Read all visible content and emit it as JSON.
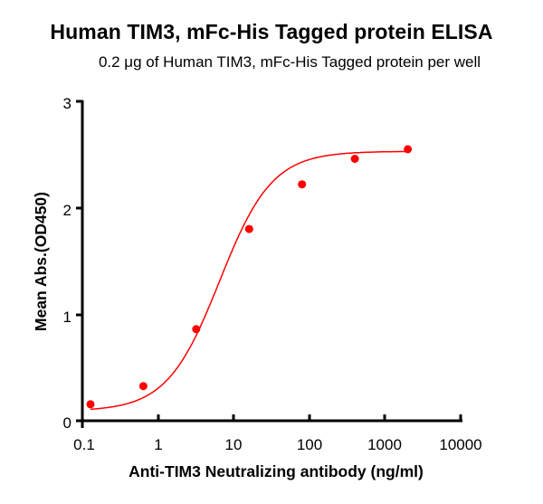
{
  "title": "Human TIM3, mFc-His Tagged protein ELISA",
  "subtitle": "0.2 μg of Human TIM3, mFc-His Tagged protein per well",
  "colors": {
    "series": "#ff0000",
    "axis": "#000000"
  },
  "axes": {
    "xlabel": "Anti-TIM3 Neutralizing antibody (ng/ml)",
    "ylabel": "Mean Abs.(OD450)",
    "xticks": [
      "0.1",
      "1",
      "10",
      "100",
      "1000",
      "10000"
    ],
    "yticks": [
      "0",
      "1",
      "2",
      "3"
    ]
  },
  "chart_data": {
    "type": "scatter",
    "title": "Human TIM3, mFc-His Tagged protein ELISA",
    "subtitle": "0.2 μg of Human TIM3, mFc-His Tagged protein per well",
    "xlabel": "Anti-TIM3 Neutralizing antibody (ng/ml)",
    "ylabel": "Mean Abs.(OD450)",
    "xscale": "log",
    "xlim": [
      0.1,
      10000
    ],
    "ylim": [
      0,
      3
    ],
    "x_tick_labels": [
      "0.1",
      "1",
      "10",
      "100",
      "1000",
      "10000"
    ],
    "y_tick_labels": [
      "0",
      "1",
      "2",
      "3"
    ],
    "grid": false,
    "legend": null,
    "series": [
      {
        "name": "Human TIM3, mFc-His Tagged protein",
        "color": "#ff0000",
        "marker": "circle",
        "fit": "4-parameter logistic curve",
        "x": [
          0.128,
          0.64,
          3.2,
          16,
          80,
          400,
          2000
        ],
        "y": [
          0.155,
          0.325,
          0.86,
          1.8,
          2.22,
          2.46,
          2.55
        ]
      }
    ]
  }
}
